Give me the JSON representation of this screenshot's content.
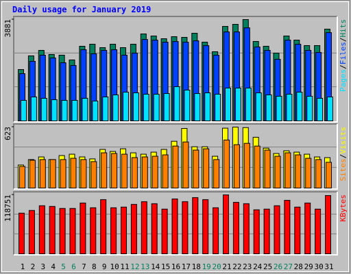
{
  "chart_data": [
    {
      "type": "bar",
      "title": "Daily usage for January 2019",
      "ylim": [
        0,
        3881
      ],
      "yticks": [
        3881
      ],
      "grid": true,
      "legend_separator": "/",
      "series": [
        {
          "name": "Hits",
          "color": "#00805c",
          "values": [
            1966,
            2490,
            2700,
            2543,
            2517,
            2334,
            2858,
            2937,
            2805,
            2937,
            2805,
            2937,
            3330,
            3251,
            3146,
            3225,
            3199,
            3356,
            3015,
            2648,
            3618,
            3697,
            3881,
            3042,
            2858,
            2596,
            3251,
            3094,
            2884,
            2884,
            3513
          ]
        },
        {
          "name": "Files",
          "color": "#0040ff",
          "values": [
            1808,
            2280,
            2517,
            2410,
            2227,
            2122,
            2725,
            2568,
            2699,
            2725,
            2517,
            2594,
            3118,
            3092,
            3013,
            3039,
            3013,
            3066,
            2882,
            2517,
            3406,
            3406,
            3563,
            2830,
            2699,
            2358,
            3092,
            2934,
            2699,
            2620,
            3380
          ]
        },
        {
          "name": "Pages",
          "color": "#00e0ff",
          "values": [
            786,
            917,
            865,
            812,
            786,
            786,
            865,
            760,
            917,
            996,
            1100,
            1074,
            1022,
            1022,
            1048,
            1310,
            1179,
            1048,
            1074,
            1022,
            1258,
            1258,
            1258,
            1074,
            996,
            943,
            1022,
            1100,
            943,
            865,
            917
          ]
        }
      ]
    },
    {
      "type": "bar",
      "ylim": [
        0,
        623
      ],
      "yticks": [
        623
      ],
      "grid": true,
      "legend_separator": "/",
      "series": [
        {
          "name": "Visits",
          "color": "#ffff00",
          "values": [
            235,
            291,
            318,
            291,
            332,
            346,
            318,
            298,
            395,
            374,
            401,
            360,
            346,
            367,
            395,
            478,
            609,
            422,
            422,
            325,
            612,
            623,
            618,
            519,
            408,
            353,
            381,
            367,
            346,
            318,
            311
          ]
        },
        {
          "name": "Sites",
          "color": "#ff8000",
          "values": [
            221,
            284,
            291,
            291,
            291,
            304,
            291,
            270,
            360,
            353,
            346,
            311,
            318,
            325,
            339,
            429,
            471,
            388,
            401,
            291,
            491,
            443,
            457,
            429,
            388,
            325,
            360,
            339,
            304,
            291,
            263
          ]
        }
      ]
    },
    {
      "type": "bar",
      "ylim": [
        0,
        118751
      ],
      "yticks": [
        118751
      ],
      "grid": true,
      "categories": [
        "1",
        "2",
        "3",
        "4",
        "5",
        "6",
        "7",
        "8",
        "9",
        "10",
        "11",
        "12",
        "13",
        "14",
        "15",
        "16",
        "17",
        "18",
        "19",
        "20",
        "21",
        "22",
        "23",
        "24",
        "25",
        "26",
        "27",
        "28",
        "29",
        "30",
        "31"
      ],
      "category_colors": [
        "#000000",
        "#000000",
        "#000000",
        "#000000",
        "#00805c",
        "#00805c",
        "#000000",
        "#000000",
        "#000000",
        "#000000",
        "#000000",
        "#00805c",
        "#00805c",
        "#000000",
        "#000000",
        "#000000",
        "#000000",
        "#000000",
        "#00805c",
        "#00805c",
        "#000000",
        "#000000",
        "#000000",
        "#000000",
        "#000000",
        "#00805c",
        "#00805c",
        "#000000",
        "#000000",
        "#000000",
        "#000000"
      ],
      "series": [
        {
          "name": "KBytes",
          "color": "#ff0000",
          "values": [
            81900,
            87360,
            96915,
            95550,
            91455,
            91455,
            102375,
            92820,
            109200,
            92820,
            94185,
            99645,
            105105,
            101010,
            90090,
            110565,
            105105,
            113295,
            109200,
            92820,
            118751,
            103740,
            101010,
            88725,
            90090,
            96915,
            107835,
            94185,
            102375,
            90090,
            117400
          ]
        }
      ]
    }
  ]
}
